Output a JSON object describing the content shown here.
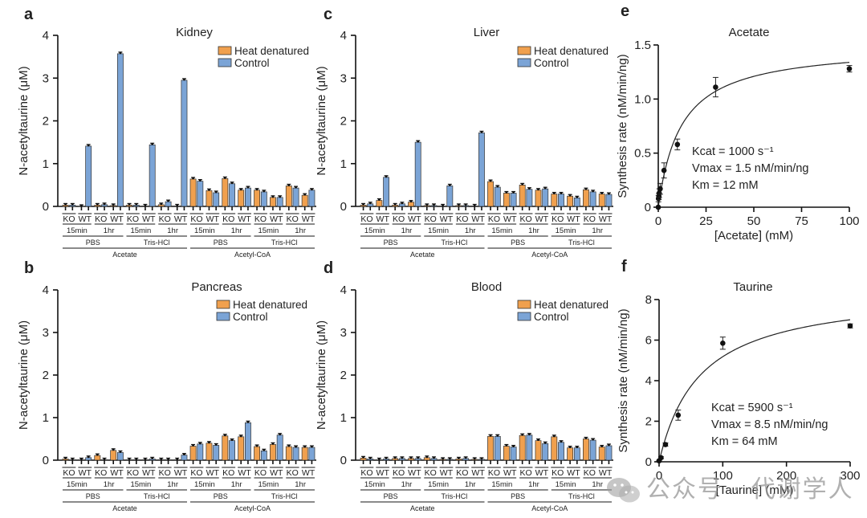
{
  "colors": {
    "heat_denatured": "#F0A04E",
    "control": "#7BA4D6",
    "edge": "#333333",
    "axis": "#111111",
    "watermark": "#969696"
  },
  "bar_categories": {
    "genotype_labels": [
      "KO",
      "WT",
      "KO",
      "WT",
      "KO",
      "WT",
      "KO",
      "WT",
      "KO",
      "WT",
      "KO",
      "WT",
      "KO",
      "WT",
      "KO",
      "WT"
    ],
    "time_labels": [
      "15min",
      "1hr",
      "15min",
      "1hr",
      "15min",
      "1hr",
      "15min",
      "1hr"
    ],
    "buffer_labels": [
      "PBS",
      "Tris-HCl",
      "PBS",
      "Tris-HCl"
    ],
    "substrate_labels": [
      "Acetate",
      "Acetyl-CoA"
    ]
  },
  "legend": [
    "Heat denatured",
    "Control"
  ],
  "chart_data": [
    {
      "panel": "a",
      "type": "bar",
      "title": "Kidney",
      "ylabel": "N-acetyltaurine (μM)",
      "xlabel": "",
      "ylim": [
        0,
        4
      ],
      "yticks": [
        0,
        1,
        2,
        3,
        4
      ],
      "legend_position": "top-right",
      "categories": [
        "Acetate/PBS/15min/KO",
        "Acetate/PBS/15min/WT",
        "Acetate/PBS/1hr/KO",
        "Acetate/PBS/1hr/WT",
        "Acetate/Tris-HCl/15min/KO",
        "Acetate/Tris-HCl/15min/WT",
        "Acetate/Tris-HCl/1hr/KO",
        "Acetate/Tris-HCl/1hr/WT",
        "Acetyl-CoA/PBS/15min/KO",
        "Acetyl-CoA/PBS/15min/WT",
        "Acetyl-CoA/PBS/1hr/KO",
        "Acetyl-CoA/PBS/1hr/WT",
        "Acetyl-CoA/Tris-HCl/15min/KO",
        "Acetyl-CoA/Tris-HCl/15min/WT",
        "Acetyl-CoA/Tris-HCl/1hr/KO",
        "Acetyl-CoA/Tris-HCl/1hr/WT"
      ],
      "series": [
        {
          "name": "Heat denatured",
          "values": [
            0.03,
            0.0,
            0.03,
            0.02,
            0.03,
            0.01,
            0.04,
            0.01,
            0.64,
            0.37,
            0.65,
            0.38,
            0.38,
            0.21,
            0.48,
            0.26
          ]
        },
        {
          "name": "Control",
          "values": [
            0.03,
            1.41,
            0.04,
            3.57,
            0.03,
            1.44,
            0.11,
            2.95,
            0.59,
            0.32,
            0.53,
            0.43,
            0.34,
            0.21,
            0.43,
            0.38
          ]
        }
      ]
    },
    {
      "panel": "c",
      "type": "bar",
      "title": "Liver",
      "ylabel": "N-acetyltaurine (μM)",
      "xlabel": "",
      "ylim": [
        0,
        4
      ],
      "yticks": [
        0,
        1,
        2,
        3,
        4
      ],
      "legend_position": "top-right",
      "categories": [
        "Acetate/PBS/15min/KO",
        "Acetate/PBS/15min/WT",
        "Acetate/PBS/1hr/KO",
        "Acetate/PBS/1hr/WT",
        "Acetate/Tris-HCl/15min/KO",
        "Acetate/Tris-HCl/15min/WT",
        "Acetate/Tris-HCl/1hr/KO",
        "Acetate/Tris-HCl/1hr/WT",
        "Acetyl-CoA/PBS/15min/KO",
        "Acetyl-CoA/PBS/15min/WT",
        "Acetyl-CoA/PBS/1hr/KO",
        "Acetyl-CoA/PBS/1hr/WT",
        "Acetyl-CoA/Tris-HCl/15min/KO",
        "Acetyl-CoA/Tris-HCl/15min/WT",
        "Acetyl-CoA/Tris-HCl/1hr/KO",
        "Acetyl-CoA/Tris-HCl/1hr/WT"
      ],
      "series": [
        {
          "name": "Heat denatured",
          "values": [
            0.03,
            0.14,
            0.03,
            0.1,
            0.02,
            0.01,
            0.02,
            0.01,
            0.58,
            0.31,
            0.5,
            0.38,
            0.29,
            0.24,
            0.39,
            0.29
          ]
        },
        {
          "name": "Control",
          "values": [
            0.06,
            0.68,
            0.06,
            1.5,
            0.02,
            0.48,
            0.02,
            1.72,
            0.45,
            0.31,
            0.4,
            0.41,
            0.29,
            0.2,
            0.34,
            0.28
          ]
        }
      ]
    },
    {
      "panel": "b",
      "type": "bar",
      "title": "Pancreas",
      "ylabel": "N-acetyltaurine (μM)",
      "xlabel": "",
      "ylim": [
        0,
        4
      ],
      "yticks": [
        0,
        1,
        2,
        3,
        4
      ],
      "legend_position": "top-right",
      "categories": [
        "Acetate/PBS/15min/KO",
        "Acetate/PBS/15min/WT",
        "Acetate/PBS/1hr/KO",
        "Acetate/PBS/1hr/WT",
        "Acetate/Tris-HCl/15min/KO",
        "Acetate/Tris-HCl/15min/WT",
        "Acetate/Tris-HCl/1hr/KO",
        "Acetate/Tris-HCl/1hr/WT",
        "Acetyl-CoA/PBS/15min/KO",
        "Acetyl-CoA/PBS/15min/WT",
        "Acetyl-CoA/PBS/1hr/KO",
        "Acetyl-CoA/PBS/1hr/WT",
        "Acetyl-CoA/Tris-HCl/15min/KO",
        "Acetyl-CoA/Tris-HCl/15min/WT",
        "Acetyl-CoA/Tris-HCl/1hr/KO",
        "Acetyl-CoA/Tris-HCl/1hr/WT"
      ],
      "series": [
        {
          "name": "Heat denatured",
          "values": [
            0.03,
            0.01,
            0.11,
            0.23,
            0.01,
            0.01,
            0.01,
            0.01,
            0.33,
            0.4,
            0.57,
            0.55,
            0.32,
            0.37,
            0.32,
            0.3
          ]
        },
        {
          "name": "Control",
          "values": [
            0.01,
            0.06,
            0.01,
            0.18,
            0.01,
            0.03,
            0.01,
            0.12,
            0.38,
            0.35,
            0.46,
            0.88,
            0.22,
            0.59,
            0.3,
            0.3
          ]
        }
      ]
    },
    {
      "panel": "d",
      "type": "bar",
      "title": "Blood",
      "ylabel": "N-acetyltaurine (μM)",
      "xlabel": "",
      "ylim": [
        0,
        4
      ],
      "yticks": [
        0,
        1,
        2,
        3,
        4
      ],
      "legend_position": "top-right",
      "categories": [
        "Acetate/PBS/15min/KO",
        "Acetate/PBS/15min/WT",
        "Acetate/PBS/1hr/KO",
        "Acetate/PBS/1hr/WT",
        "Acetate/Tris-HCl/15min/KO",
        "Acetate/Tris-HCl/15min/WT",
        "Acetate/Tris-HCl/1hr/KO",
        "Acetate/Tris-HCl/1hr/WT",
        "Acetyl-CoA/PBS/15min/KO",
        "Acetyl-CoA/PBS/15min/WT",
        "Acetyl-CoA/PBS/1hr/KO",
        "Acetyl-CoA/PBS/1hr/WT",
        "Acetyl-CoA/Tris-HCl/15min/KO",
        "Acetyl-CoA/Tris-HCl/15min/WT",
        "Acetyl-CoA/Tris-HCl/1hr/KO",
        "Acetyl-CoA/Tris-HCl/1hr/WT"
      ],
      "series": [
        {
          "name": "Heat denatured",
          "values": [
            0.05,
            0.01,
            0.04,
            0.04,
            0.06,
            0.02,
            0.03,
            0.02,
            0.56,
            0.33,
            0.58,
            0.46,
            0.55,
            0.29,
            0.5,
            0.31
          ]
        },
        {
          "name": "Control",
          "values": [
            0.03,
            0.03,
            0.04,
            0.04,
            0.04,
            0.02,
            0.04,
            0.02,
            0.56,
            0.31,
            0.59,
            0.39,
            0.42,
            0.29,
            0.47,
            0.34
          ]
        }
      ]
    },
    {
      "panel": "e",
      "type": "scatter",
      "title": "Acetate",
      "xlabel": "[Acetate] (mM)",
      "ylabel": "Synthesis rate (nM/min/ng)",
      "xlim": [
        0,
        100
      ],
      "ylim": [
        0,
        1.5
      ],
      "xticks": [
        0,
        25,
        50,
        75,
        100
      ],
      "yticks": [
        0,
        0.5,
        1.0,
        1.5
      ],
      "ytick_labels": [
        "0",
        "0.5",
        "1.0",
        "1.5"
      ],
      "x": [
        0,
        0.1,
        0.3,
        0.5,
        1,
        3,
        10,
        30,
        100
      ],
      "y": [
        0.0,
        0.08,
        0.1,
        0.13,
        0.17,
        0.34,
        0.58,
        1.11,
        1.28
      ],
      "yerr": [
        0.0,
        0.03,
        0.03,
        0.04,
        0.05,
        0.07,
        0.05,
        0.09,
        0.03
      ],
      "fit": {
        "model": "Michaelis-Menten",
        "Vmax": 1.5,
        "Km": 12
      },
      "annotations": [
        "Kcat = 1000 s⁻¹",
        "Vmax = 1.5 nM/min/ng",
        "Km = 12 mM"
      ]
    },
    {
      "panel": "f",
      "type": "scatter",
      "title": "Taurine",
      "xlabel": "[Taurine] (mM)",
      "ylabel": "Synthesis rate (nM/min/ng)",
      "xlim": [
        0,
        300
      ],
      "ylim": [
        0,
        8
      ],
      "xticks": [
        0,
        100,
        200,
        300
      ],
      "yticks": [
        0,
        2,
        4,
        6,
        8
      ],
      "ytick_labels": [
        "0",
        "2",
        "4",
        "6",
        "8"
      ],
      "x": [
        0,
        3,
        10,
        30,
        100,
        300
      ],
      "y": [
        0.05,
        0.2,
        0.85,
        2.3,
        5.85,
        6.7
      ],
      "yerr": [
        0.02,
        0.05,
        0.08,
        0.25,
        0.3,
        0.1
      ],
      "fit": {
        "model": "Michaelis-Menten",
        "Vmax": 8.5,
        "Km": 64
      },
      "annotations": [
        "Kcat = 5900 s⁻¹",
        "Vmax = 8.5 nM/min/ng",
        "Km = 64 mM"
      ]
    }
  ],
  "watermark": {
    "text": "公众号 · 代谢学人",
    "icon": "wechat-icon"
  }
}
